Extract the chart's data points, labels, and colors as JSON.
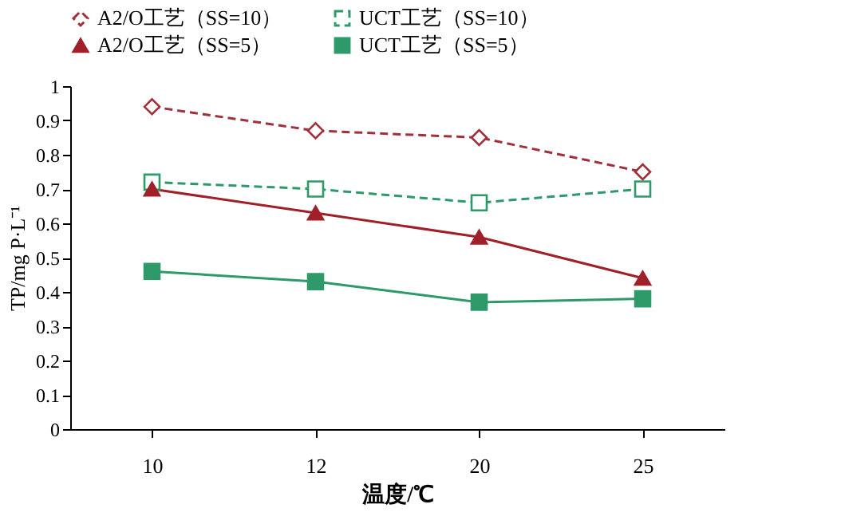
{
  "chart_data": {
    "type": "line",
    "xlabel": "温度/℃",
    "ylabel": "TP/mg P·L⁻¹",
    "categories": [
      "10",
      "12",
      "20",
      "25"
    ],
    "series": [
      {
        "name": "A2/O工艺（SS=10）",
        "color": "#a0303a",
        "marker": "diamond",
        "line_style": "dashed",
        "values": [
          0.94,
          0.87,
          0.85,
          0.75
        ]
      },
      {
        "name": "UCT工艺（SS=10）",
        "color": "#2e9a6a",
        "marker": "square",
        "line_style": "dashed",
        "values": [
          0.72,
          0.7,
          0.66,
          0.7
        ]
      },
      {
        "name": "A2/O工艺（SS=5）",
        "color": "#a0202a",
        "marker": "triangle",
        "line_style": "solid",
        "values": [
          0.7,
          0.63,
          0.56,
          0.44
        ]
      },
      {
        "name": "UCT工艺（SS=5）",
        "color": "#2e9a6a",
        "marker": "square",
        "line_style": "solid",
        "values": [
          0.46,
          0.43,
          0.37,
          0.38
        ]
      }
    ],
    "ylim": [
      0,
      1
    ],
    "yticks": [
      0,
      0.1,
      0.2,
      0.3,
      0.4,
      0.5,
      0.6,
      0.7,
      0.8,
      0.9,
      1
    ],
    "grid": false,
    "legend": "top"
  }
}
